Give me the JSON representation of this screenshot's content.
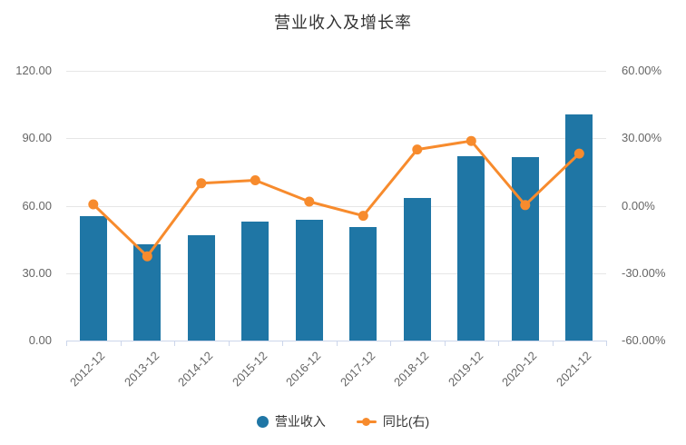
{
  "header": {
    "title": "营业收入及增长率"
  },
  "chart_data": {
    "type": "bar",
    "title": "营业收入及增长率",
    "categories": [
      "2012-12",
      "2013-12",
      "2014-12",
      "2015-12",
      "2016-12",
      "2017-12",
      "2018-12",
      "2019-12",
      "2020-12",
      "2021-12"
    ],
    "series": [
      {
        "name": "营业收入",
        "type": "bar",
        "yaxis": "left",
        "color": "#1f76a5",
        "values": [
          55.3,
          42.7,
          46.9,
          52.9,
          53.8,
          50.6,
          63.3,
          82.0,
          81.6,
          100.7
        ]
      },
      {
        "name": "同比(右)",
        "type": "line",
        "yaxis": "right",
        "color": "#f78b2d",
        "values": [
          0.6,
          -22.5,
          10.0,
          11.3,
          1.8,
          -4.5,
          25.0,
          28.8,
          0.3,
          23.2
        ]
      }
    ],
    "left_axis": {
      "min": 0,
      "max": 120,
      "tick_values": [
        0,
        30,
        60,
        90,
        120
      ],
      "tick_labels": [
        "0.00",
        "30.00",
        "60.00",
        "90.00",
        "120.00"
      ]
    },
    "right_axis": {
      "min": -60,
      "max": 60,
      "tick_values": [
        -60,
        -30,
        0,
        30,
        60
      ],
      "tick_labels": [
        "-60.00%",
        "-30.00%",
        "0.00%",
        "30.00%",
        "60.00%"
      ]
    },
    "grid": "horizontal",
    "legend_position": "bottom-center"
  },
  "colors": {
    "bar": "#1f76a5",
    "line": "#f78b2d",
    "grid": "#e6e6e6",
    "axis": "#ccd6eb",
    "axis_label": "#666666",
    "title": "#333333",
    "legend_text": "#333333",
    "background": "#ffffff"
  }
}
